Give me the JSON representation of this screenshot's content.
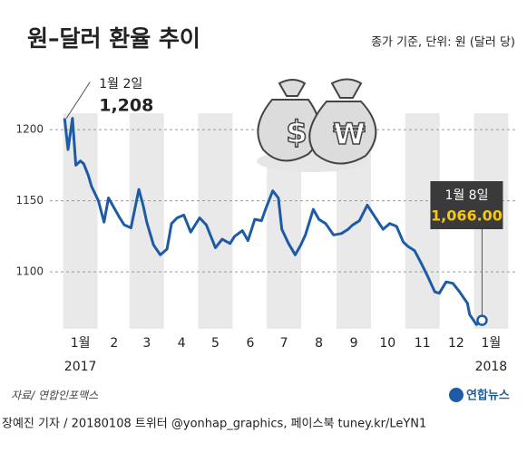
{
  "chart_data": {
    "type": "line",
    "title": "원–달러 환율 추이",
    "subtitle": "종가 기준, 단위: 원 (달러 당)",
    "color": "#1d5ba6",
    "x": [
      "2017-01-02",
      "2017-01-05",
      "2017-01-09",
      "2017-01-12",
      "2017-01-16",
      "2017-01-19",
      "2017-01-23",
      "2017-01-26",
      "2017-02-01",
      "2017-02-06",
      "2017-02-10",
      "2017-02-15",
      "2017-02-20",
      "2017-02-24",
      "2017-03-02",
      "2017-03-09",
      "2017-03-13",
      "2017-03-16",
      "2017-03-22",
      "2017-03-28",
      "2017-04-03",
      "2017-04-07",
      "2017-04-12",
      "2017-04-18",
      "2017-04-24",
      "2017-05-02",
      "2017-05-08",
      "2017-05-16",
      "2017-05-22",
      "2017-05-29",
      "2017-06-02",
      "2017-06-09",
      "2017-06-14",
      "2017-06-20",
      "2017-06-26",
      "2017-06-30",
      "2017-07-06",
      "2017-07-11",
      "2017-07-14",
      "2017-07-20",
      "2017-07-26",
      "2017-07-31",
      "2017-08-04",
      "2017-08-11",
      "2017-08-16",
      "2017-08-22",
      "2017-08-29",
      "2017-09-05",
      "2017-09-11",
      "2017-09-15",
      "2017-09-21",
      "2017-09-28",
      "2017-10-12",
      "2017-10-18",
      "2017-10-24",
      "2017-10-30",
      "2017-11-03",
      "2017-11-09",
      "2017-11-15",
      "2017-11-20",
      "2017-11-27",
      "2017-12-01",
      "2017-12-07",
      "2017-12-13",
      "2017-12-19",
      "2017-12-26",
      "2017-12-28",
      "2018-01-03",
      "2018-01-08"
    ],
    "values": [
      1208,
      1186,
      1208,
      1175,
      1178,
      1176,
      1168,
      1160,
      1150,
      1135,
      1152,
      1145,
      1138,
      1133,
      1131,
      1158,
      1146,
      1135,
      1119,
      1112,
      1116,
      1134,
      1138,
      1140,
      1128,
      1138,
      1133,
      1117,
      1123,
      1120,
      1125,
      1129,
      1122,
      1137,
      1136,
      1145,
      1157,
      1152,
      1130,
      1120,
      1112,
      1119,
      1126,
      1144,
      1137,
      1134,
      1126,
      1127,
      1130,
      1133,
      1136,
      1147,
      1130,
      1134,
      1132,
      1121,
      1118,
      1115,
      1106,
      1098,
      1086,
      1085,
      1093,
      1092,
      1086,
      1078,
      1070,
      1063,
      1066
    ],
    "xlim": [
      "2017-01-01",
      "2018-01-31"
    ],
    "xticks": [
      {
        "value": "2017-01-16",
        "label": "1월"
      },
      {
        "value": "2017-02-15",
        "label": "2"
      },
      {
        "value": "2017-03-16",
        "label": "3"
      },
      {
        "value": "2017-04-16",
        "label": "4"
      },
      {
        "value": "2017-05-16",
        "label": "5"
      },
      {
        "value": "2017-06-16",
        "label": "6"
      },
      {
        "value": "2017-07-16",
        "label": "7"
      },
      {
        "value": "2017-08-16",
        "label": "8"
      },
      {
        "value": "2017-09-16",
        "label": "9"
      },
      {
        "value": "2017-10-16",
        "label": "10"
      },
      {
        "value": "2017-11-16",
        "label": "11"
      },
      {
        "value": "2017-12-16",
        "label": "12"
      },
      {
        "value": "2018-01-16",
        "label": "1월"
      }
    ],
    "years": [
      "2017",
      "2018"
    ],
    "ylim": [
      1060,
      1230
    ],
    "yticks": [
      1100,
      1150,
      1200
    ],
    "grid": true,
    "annotations": [
      {
        "date_label": "1월 2일",
        "value_label": "1,208"
      },
      {
        "date_label": "1월 8일",
        "value_label": "1,066.00"
      }
    ],
    "source": "자료/ 연합인포맥스",
    "logo": "연합뉴스",
    "credit": "장예진 기자 / 20180108 트위터 @yonhap_graphics, 페이스북 tuney.kr/LeYN1"
  }
}
